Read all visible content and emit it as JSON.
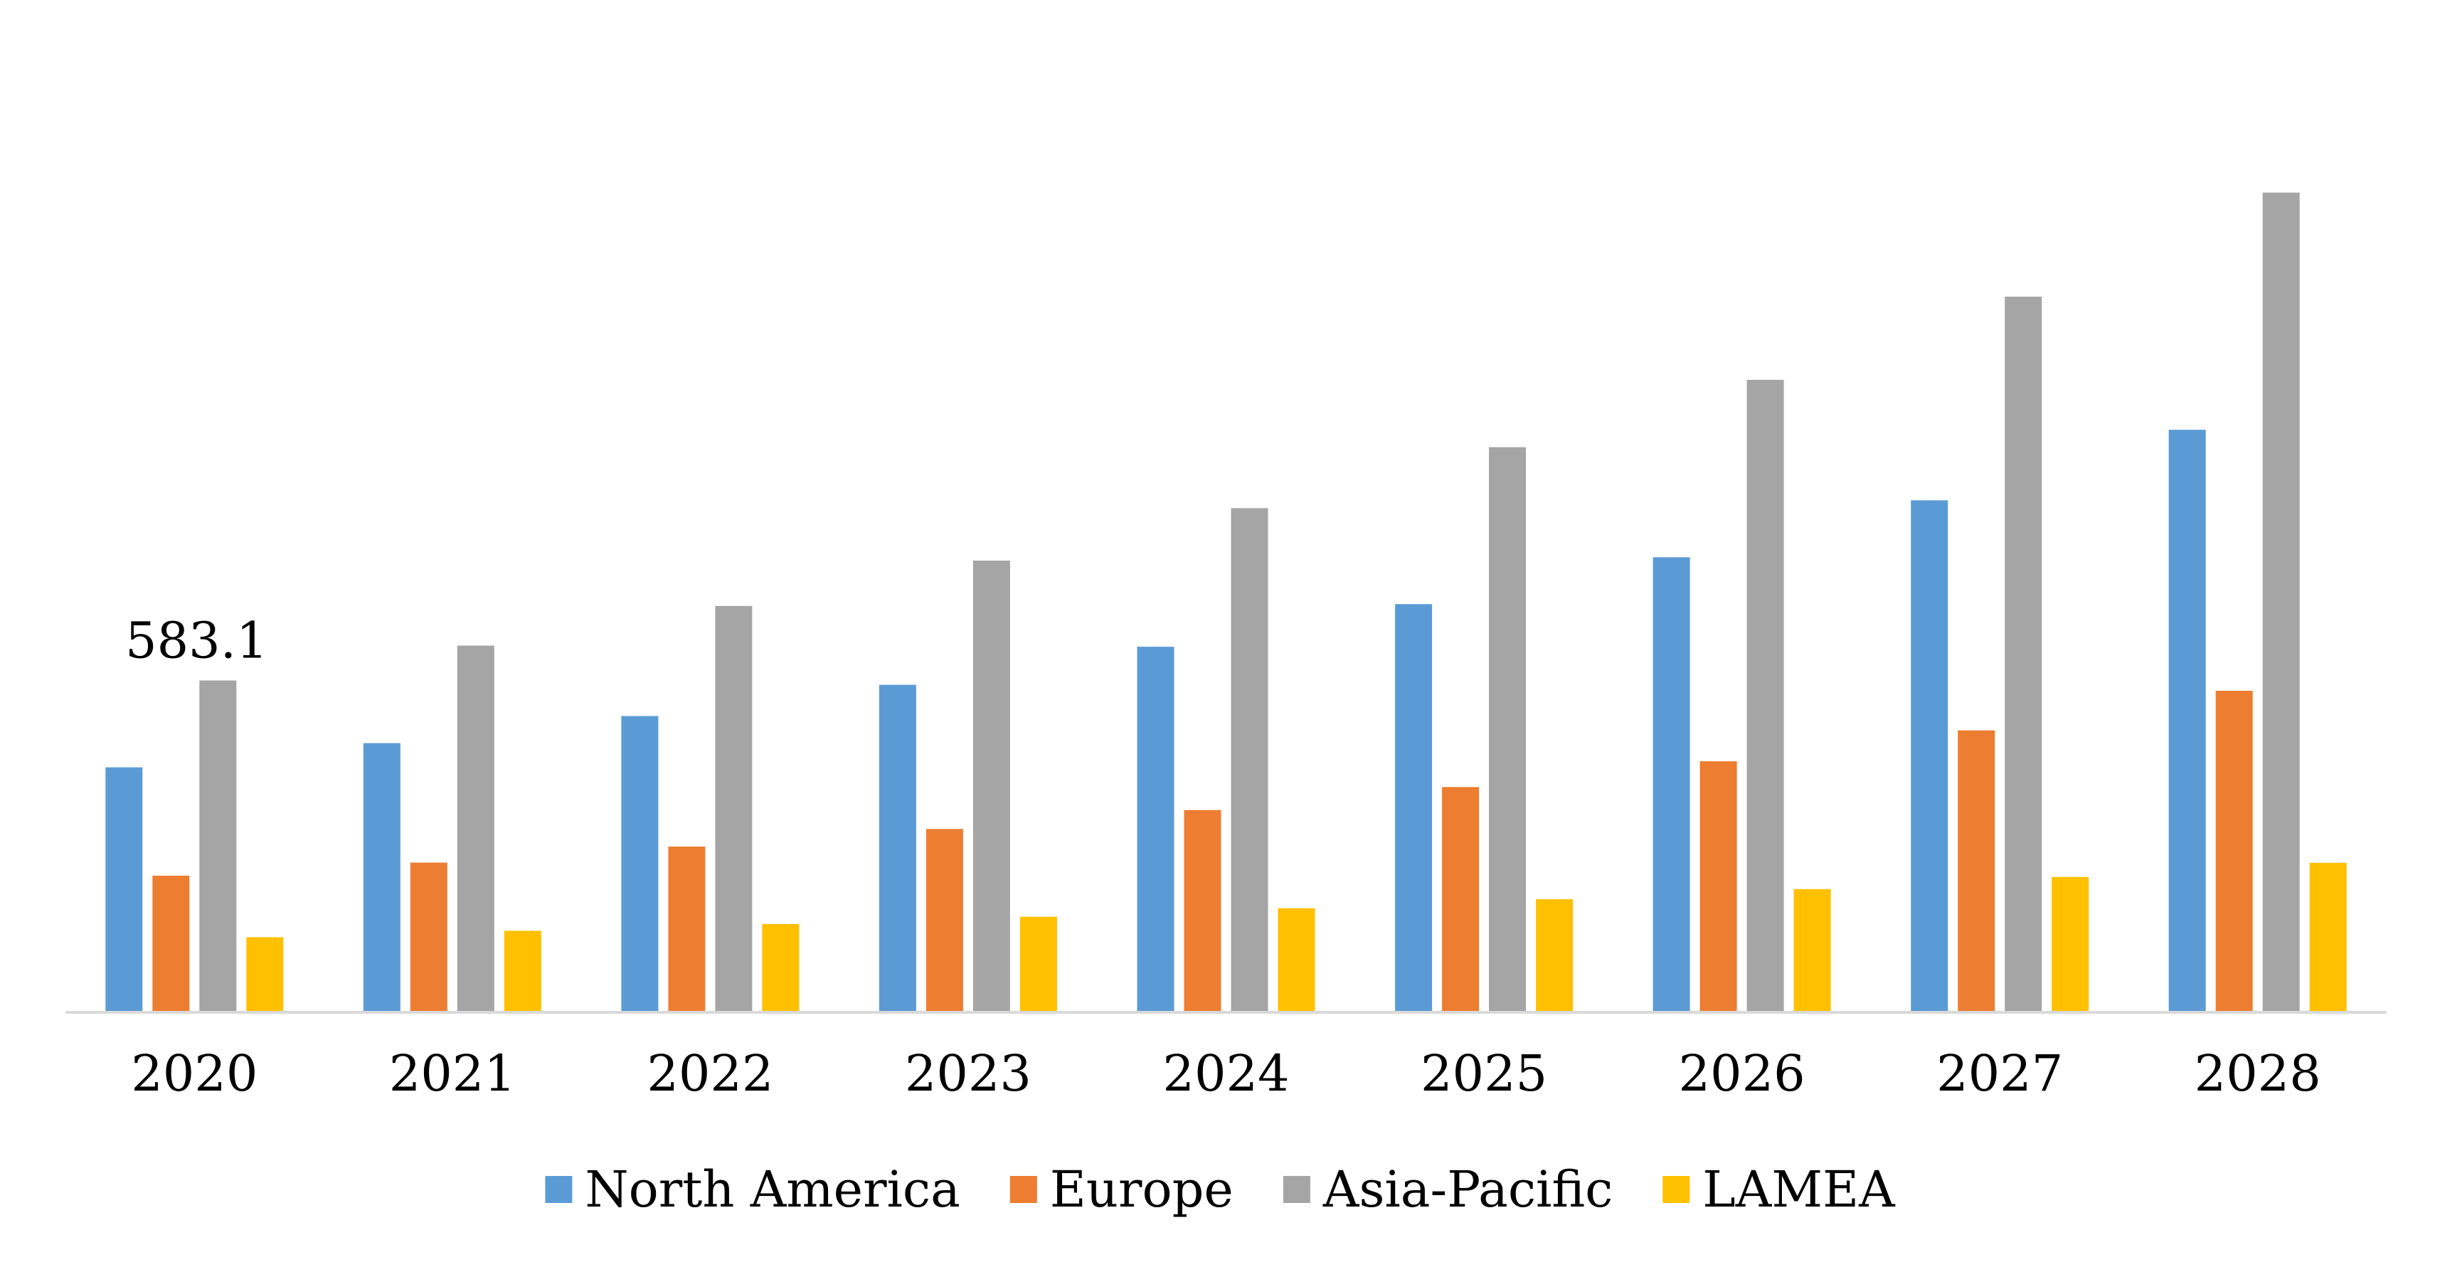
{
  "chart_data": {
    "type": "bar",
    "title": "",
    "xlabel": "",
    "ylabel": "",
    "categories": [
      "2020",
      "2021",
      "2022",
      "2023",
      "2024",
      "2025",
      "2026",
      "2027",
      "2028"
    ],
    "series": [
      {
        "name": "North America",
        "color": "#5B9BD5",
        "values": [
          429.8,
          472.5,
          520.3,
          575.4,
          642.6,
          717.7,
          800.4,
          900.9,
          1025.4
        ]
      },
      {
        "name": "Europe",
        "color": "#ED7D31",
        "values": [
          238.6,
          261.7,
          290.0,
          320.9,
          354.4,
          395.0,
          440.4,
          494.9,
          564.9
        ]
      },
      {
        "name": "Asia-Pacific",
        "color": "#A5A5A5",
        "values": [
          583.1,
          644.5,
          714.5,
          794.6,
          887.1,
          994.6,
          1113.5,
          1260.2,
          1443.9
        ]
      },
      {
        "name": "LAMEA",
        "color": "#FFC000",
        "values": [
          130.0,
          141.3,
          153.3,
          166.2,
          181.1,
          197.0,
          214.9,
          236.3,
          261.3
        ]
      }
    ],
    "data_labels": [
      {
        "series": "Asia-Pacific",
        "category": "2020",
        "text": "583.1"
      }
    ],
    "ylim": [
      0,
      1500
    ],
    "y_axis_visible": false,
    "grid": false,
    "legend": {
      "placement": "bottom"
    }
  }
}
